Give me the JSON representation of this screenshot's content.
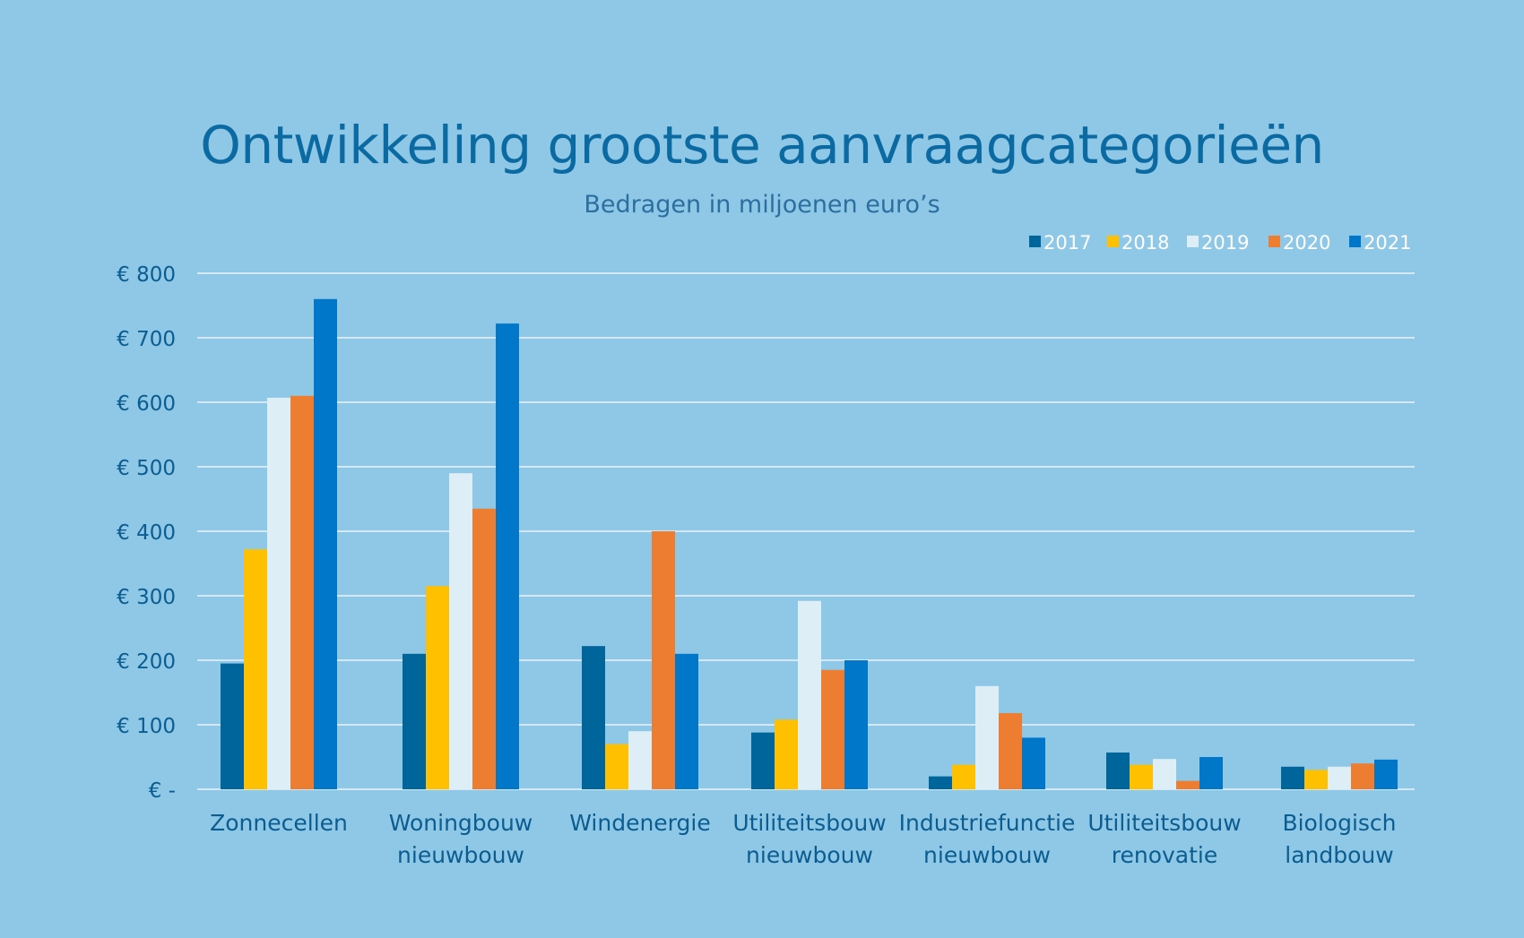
{
  "chart_data": {
    "type": "bar",
    "title": "Ontwikkeling grootste aanvraagcategorieën",
    "subtitle": "Bedragen in miljoenen euro’s",
    "xlabel": "",
    "ylabel": "",
    "ylim": [
      0,
      800
    ],
    "yticks": [
      0,
      100,
      200,
      300,
      400,
      500,
      600,
      700,
      800
    ],
    "ytick_labels": [
      "€ -",
      "€ 100",
      "€ 200",
      "€ 300",
      "€ 400",
      "€ 500",
      "€ 600",
      "€ 700",
      "€ 800"
    ],
    "grid": true,
    "legend_position": "top-right",
    "categories": [
      [
        "Zonnecellen"
      ],
      [
        "Woningbouw",
        "nieuwbouw"
      ],
      [
        "Windenergie"
      ],
      [
        "Utiliteitsbouw",
        "nieuwbouw"
      ],
      [
        "Industriefunctie",
        "nieuwbouw"
      ],
      [
        "Utiliteitsbouw",
        "renovatie"
      ],
      [
        "Biologisch",
        "landbouw"
      ]
    ],
    "series": [
      {
        "name": "2017",
        "color": "#00659a",
        "values": [
          195,
          210,
          222,
          88,
          20,
          57,
          35
        ]
      },
      {
        "name": "2018",
        "color": "#ffc000",
        "values": [
          372,
          315,
          70,
          108,
          38,
          38,
          30
        ]
      },
      {
        "name": "2019",
        "color": "#ddeef7",
        "values": [
          607,
          490,
          90,
          292,
          160,
          47,
          35
        ]
      },
      {
        "name": "2020",
        "color": "#ed7d31",
        "values": [
          610,
          435,
          400,
          185,
          118,
          13,
          40
        ]
      },
      {
        "name": "2021",
        "color": "#0077c8",
        "values": [
          760,
          722,
          210,
          200,
          80,
          50,
          46
        ]
      }
    ]
  },
  "colors": {
    "background": "#8fc8e6",
    "title": "#0b6aa1",
    "subtitle": "#2b6fa0",
    "axis_text": "#0b5d91",
    "gridline": "#d3e8f4"
  }
}
